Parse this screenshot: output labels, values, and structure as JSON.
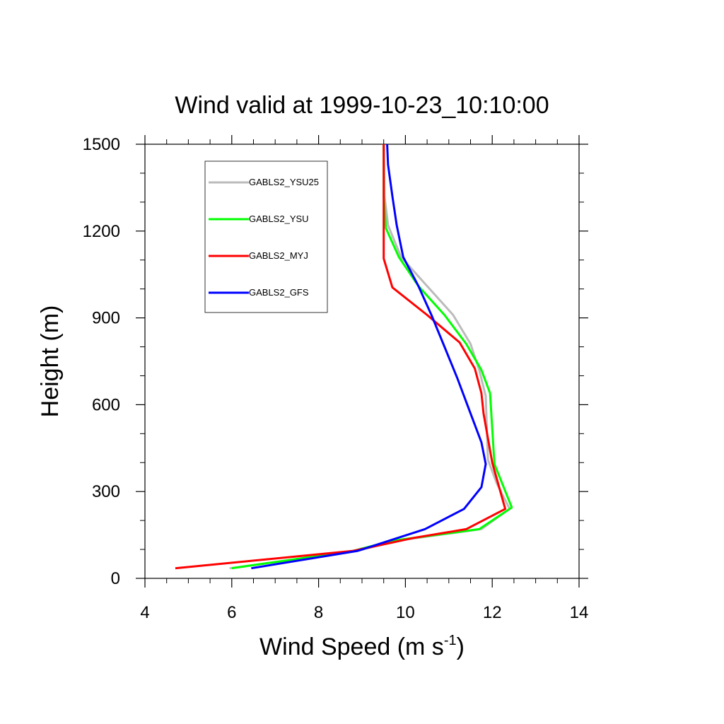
{
  "chart_data": {
    "type": "line",
    "title": "Wind valid at 1999-10-23_10:10:00",
    "xlabel": "Wind Speed (m s",
    "xlabel_sup": "-1",
    "xlabel_close": ")",
    "ylabel": "Height (m)",
    "xlim": [
      4,
      14
    ],
    "ylim": [
      0,
      1500
    ],
    "xticks": [
      4,
      6,
      8,
      10,
      12,
      14
    ],
    "yticks": [
      0,
      300,
      600,
      900,
      1200,
      1500
    ],
    "xtick_labels": [
      "4",
      "6",
      "8",
      "10",
      "12",
      "14"
    ],
    "ytick_labels": [
      "0",
      "300",
      "600",
      "900",
      "1200",
      "1500"
    ],
    "grid": false,
    "legend_position": "top-left",
    "series": [
      {
        "name": "GABLS2_YSU25",
        "color": "#bbbbbb",
        "points": [
          [
            5.95,
            35
          ],
          [
            8.9,
            95
          ],
          [
            9.8,
            130
          ],
          [
            11.75,
            170
          ],
          [
            12.4,
            240
          ],
          [
            12.1,
            330
          ],
          [
            11.9,
            410
          ],
          [
            11.85,
            630
          ],
          [
            11.7,
            720
          ],
          [
            11.5,
            810
          ],
          [
            11.1,
            910
          ],
          [
            10.5,
            1010
          ],
          [
            9.9,
            1110
          ],
          [
            9.6,
            1220
          ],
          [
            9.52,
            1320
          ],
          [
            9.5,
            1500
          ]
        ]
      },
      {
        "name": "GABLS2_YSU",
        "color": "#00ff00",
        "points": [
          [
            6.0,
            35
          ],
          [
            8.8,
            95
          ],
          [
            9.7,
            130
          ],
          [
            11.7,
            170
          ],
          [
            12.45,
            245
          ],
          [
            12.05,
            395
          ],
          [
            11.95,
            640
          ],
          [
            11.75,
            720
          ],
          [
            11.4,
            810
          ],
          [
            10.9,
            910
          ],
          [
            10.3,
            1010
          ],
          [
            9.85,
            1110
          ],
          [
            9.55,
            1210
          ],
          [
            9.5,
            1320
          ],
          [
            9.5,
            1500
          ]
        ]
      },
      {
        "name": "GABLS2_MYJ",
        "color": "#ff0000",
        "points": [
          [
            4.7,
            35
          ],
          [
            8.8,
            95
          ],
          [
            10.2,
            140
          ],
          [
            11.4,
            170
          ],
          [
            12.3,
            240
          ],
          [
            12.0,
            400
          ],
          [
            11.8,
            570
          ],
          [
            11.75,
            640
          ],
          [
            11.6,
            725
          ],
          [
            11.25,
            815
          ],
          [
            10.5,
            910
          ],
          [
            9.7,
            1005
          ],
          [
            9.5,
            1105
          ],
          [
            9.5,
            1310
          ],
          [
            9.5,
            1500
          ]
        ]
      },
      {
        "name": "GABLS2_GFS",
        "color": "#0000ff",
        "points": [
          [
            6.45,
            35
          ],
          [
            8.9,
            95
          ],
          [
            10.45,
            170
          ],
          [
            11.35,
            240
          ],
          [
            11.75,
            315
          ],
          [
            11.85,
            395
          ],
          [
            11.75,
            470
          ],
          [
            11.5,
            570
          ],
          [
            11.2,
            690
          ],
          [
            10.9,
            800
          ],
          [
            10.6,
            910
          ],
          [
            10.3,
            1010
          ],
          [
            9.95,
            1110
          ],
          [
            9.8,
            1220
          ],
          [
            9.7,
            1320
          ],
          [
            9.6,
            1430
          ],
          [
            9.58,
            1500
          ]
        ]
      }
    ]
  }
}
